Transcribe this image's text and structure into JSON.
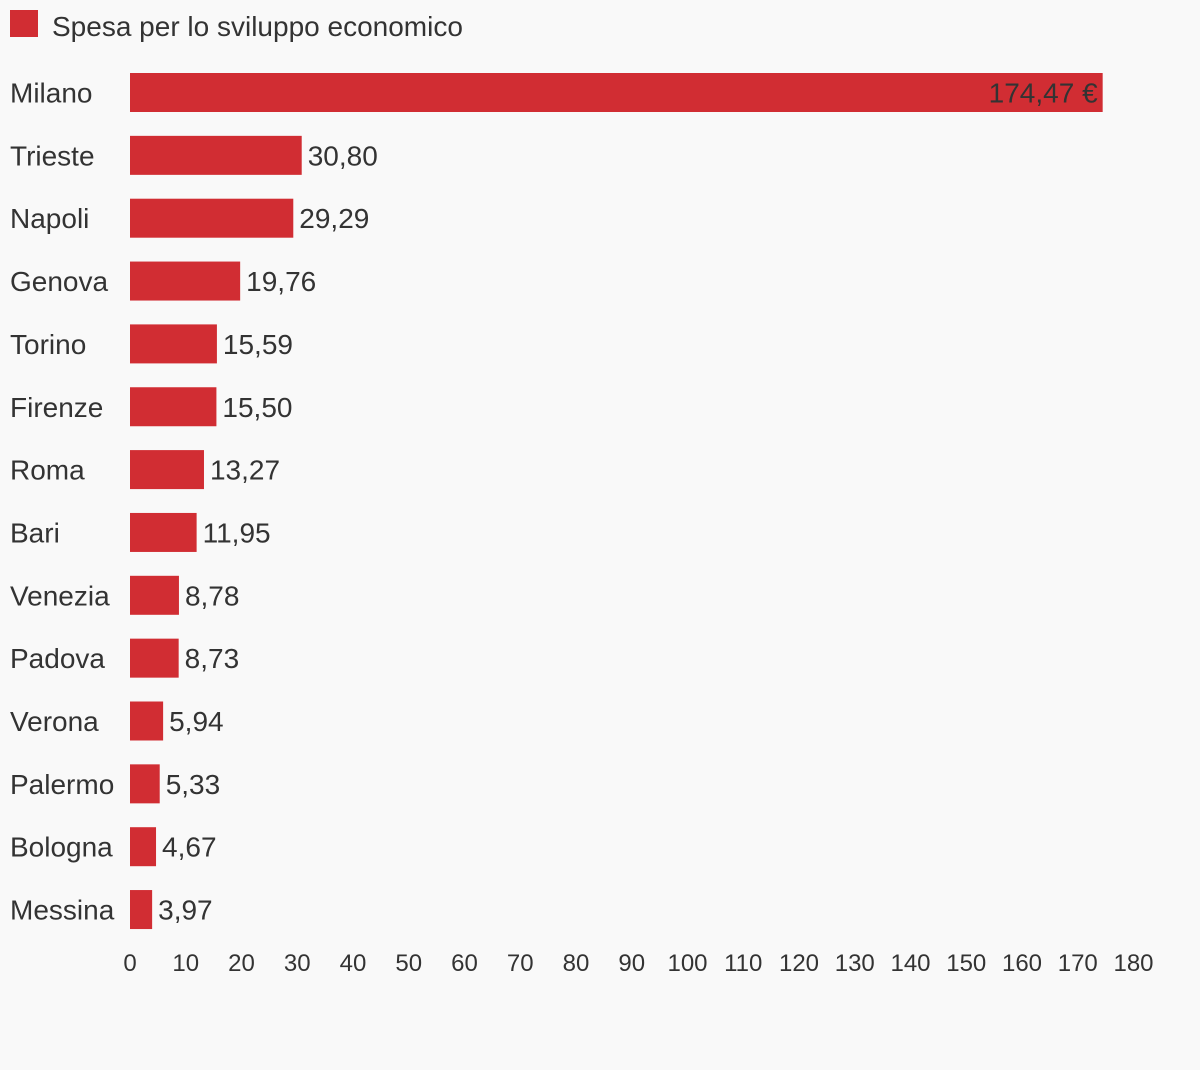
{
  "chart_data": {
    "type": "bar",
    "orientation": "horizontal",
    "legend": {
      "position": "top-left",
      "entries": [
        {
          "name": "Spesa per lo sviluppo economico",
          "color": "#d12d33"
        }
      ]
    },
    "categories": [
      "Milano",
      "Trieste",
      "Napoli",
      "Genova",
      "Torino",
      "Firenze",
      "Roma",
      "Bari",
      "Venezia",
      "Padova",
      "Verona",
      "Palermo",
      "Bologna",
      "Messina"
    ],
    "values": [
      174.47,
      30.8,
      29.29,
      19.76,
      15.59,
      15.5,
      13.27,
      11.95,
      8.78,
      8.73,
      5.94,
      5.33,
      4.67,
      3.97
    ],
    "value_labels": [
      "174,47 €",
      "30,80",
      "29,29",
      "19,76",
      "15,59",
      "15,50",
      "13,27",
      "11,95",
      "8,78",
      "8,73",
      "5,94",
      "5,33",
      "4,67",
      "3,97"
    ],
    "xlim": [
      0,
      180
    ],
    "x_ticks": [
      0,
      10,
      20,
      30,
      40,
      50,
      60,
      70,
      80,
      90,
      100,
      110,
      120,
      130,
      140,
      150,
      160,
      170,
      180
    ],
    "title": "",
    "xlabel": "",
    "ylabel": "",
    "grid": false,
    "bar_color": "#d12d33"
  }
}
